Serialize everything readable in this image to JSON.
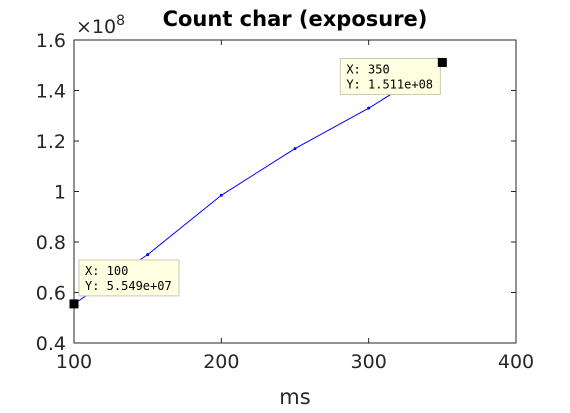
{
  "chart_data": {
    "type": "line",
    "title": "Count char (exposure)",
    "xlabel": "ms",
    "ylabel": "",
    "y_exponent_label": "×10",
    "y_exponent_power": "8",
    "xlim": [
      100,
      400
    ],
    "ylim": [
      0.4,
      1.6
    ],
    "x_ticks": [
      100,
      200,
      300,
      400
    ],
    "x_tick_labels": [
      "100",
      "200",
      "300",
      "400"
    ],
    "y_ticks": [
      0.4,
      0.6,
      0.8,
      1.0,
      1.2,
      1.4,
      1.6
    ],
    "y_tick_labels": [
      "0.4",
      "0.6",
      "0.8",
      "1",
      "1.2",
      "1.4",
      "1.6"
    ],
    "grid": false,
    "series": [
      {
        "x": [
          100,
          150,
          200,
          250,
          300,
          350
        ],
        "y": [
          0.5549,
          0.75,
          0.985,
          1.17,
          1.33,
          1.511
        ],
        "color": "#0000ff"
      }
    ],
    "datatips": [
      {
        "x_label": "X: 100",
        "y_label": "Y: 5.549e+07",
        "x": 100,
        "y": 0.5549
      },
      {
        "x_label": "X: 350",
        "y_label": "Y: 1.511e+08",
        "x": 350,
        "y": 1.511
      }
    ]
  }
}
